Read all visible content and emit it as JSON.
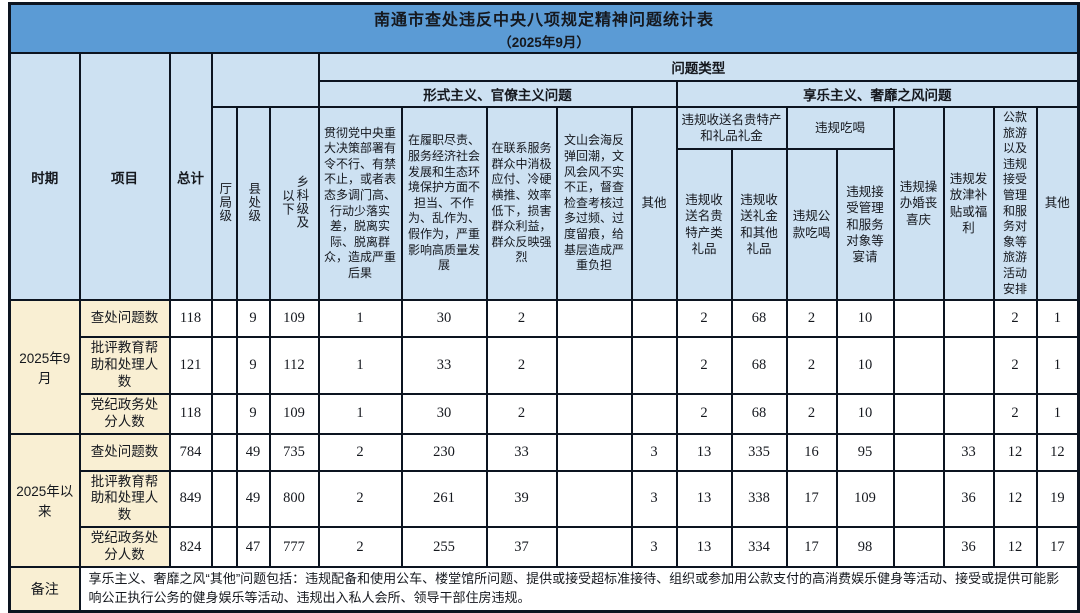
{
  "title": {
    "line1": "南通市查处违反中央八项规定精神问题统计表",
    "line2": "（2025年9月）"
  },
  "header": {
    "period": "时期",
    "item": "项目",
    "total": "总计",
    "problem_type": "问题类型",
    "rank_cols": [
      "厅局级",
      "县处级",
      "乡科级及以下"
    ],
    "formalism": {
      "label": "形式主义、官僚主义问题",
      "cols": [
        "贯彻党中央重大决策部署有令不行、有禁不止，或者表态多调门高、行动少落实差，脱离实际、脱离群众，造成严重后果",
        "在履职尽责、服务经济社会发展和生态环境保护方面不担当、不作为、乱作为、假作为，严重影响高质量发展",
        "在联系服务群众中消极应付、冷硬横推、效率低下，损害群众利益，群众反映强烈",
        "文山会海反弹回潮，文风会风不实不正，督查检查考核过多过频、过度留痕，给基层造成严重负担",
        "其他"
      ]
    },
    "hedonism": {
      "label": "享乐主义、奢靡之风问题",
      "gift_group": {
        "label": "违规收送名贵特产和礼品礼金",
        "cols": [
          "违规收送名贵特产类礼品",
          "违规收送礼金和其他礼品"
        ]
      },
      "dining_group": {
        "label": "违规吃喝",
        "cols": [
          "违规公款吃喝",
          "违规接受管理和服务对象等宴请"
        ]
      },
      "cols": [
        "违规操办婚丧喜庆",
        "违规发放津补贴或福利",
        "公款旅游以及违规接受管理和服务对象等旅游活动安排",
        "其他"
      ]
    }
  },
  "body": {
    "groups": [
      {
        "period": "2025年9月",
        "rows": [
          {
            "item": "查处问题数",
            "values": [
              "118",
              "",
              "9",
              "109",
              "1",
              "30",
              "2",
              "",
              "",
              "2",
              "68",
              "2",
              "10",
              "",
              "",
              "2",
              "1"
            ]
          },
          {
            "item": "批评教育帮助和处理人数",
            "values": [
              "121",
              "",
              "9",
              "112",
              "1",
              "33",
              "2",
              "",
              "",
              "2",
              "68",
              "2",
              "10",
              "",
              "",
              "2",
              "1"
            ]
          },
          {
            "item": "党纪政务处分人数",
            "values": [
              "118",
              "",
              "9",
              "109",
              "1",
              "30",
              "2",
              "",
              "",
              "2",
              "68",
              "2",
              "10",
              "",
              "",
              "2",
              "1"
            ]
          }
        ]
      },
      {
        "period": "2025年以来",
        "rows": [
          {
            "item": "查处问题数",
            "values": [
              "784",
              "",
              "49",
              "735",
              "2",
              "230",
              "33",
              "",
              "3",
              "13",
              "335",
              "16",
              "95",
              "",
              "33",
              "12",
              "12"
            ]
          },
          {
            "item": "批评教育帮助和处理人数",
            "values": [
              "849",
              "",
              "49",
              "800",
              "2",
              "261",
              "39",
              "",
              "3",
              "13",
              "338",
              "17",
              "109",
              "",
              "36",
              "12",
              "19"
            ]
          },
          {
            "item": "党纪政务处分人数",
            "values": [
              "824",
              "",
              "47",
              "777",
              "2",
              "255",
              "37",
              "",
              "3",
              "13",
              "334",
              "17",
              "98",
              "",
              "36",
              "12",
              "17"
            ]
          }
        ]
      }
    ]
  },
  "remark": {
    "label": "备注",
    "text": "享乐主义、奢靡之风“其他”问题包括：违规配备和使用公车、楼堂馆所问题、提供或接受超标准接待、组织或参加用公款支付的高消费娱乐健身等活动、接受或提供可能影响公正执行公务的健身娱乐等活动、违规出入私人会所、领导干部住房违规。"
  },
  "colors": {
    "title_bar": "#5B9BD5",
    "header_bg": "#CDE1F2",
    "label_bg": "#F9EFD3",
    "border": "#0C1420"
  }
}
